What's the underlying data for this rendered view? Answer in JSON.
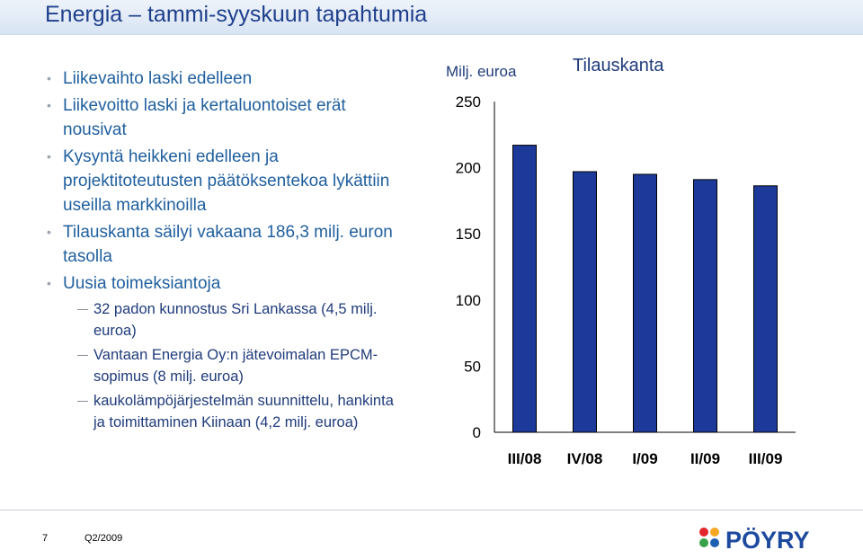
{
  "slide": {
    "title": "Energia – tammi-syyskuun tapahtumia",
    "page_number": "7",
    "footer": "Q2/2009",
    "logo_text": "PÖYRY"
  },
  "bullets": [
    {
      "text": "Liikevaihto laski edelleen"
    },
    {
      "text": "Liikevoitto laski ja kertaluontoiset erät nousivat"
    },
    {
      "text": "Kysyntä heikkeni edelleen ja projektitoteutusten päätöksentekoa lykättiin useilla markkinoilla"
    },
    {
      "text": "Tilauskanta säilyi vakaana 186,3 milj. euron tasolla"
    },
    {
      "text": "Uusia toimeksiantoja",
      "sub": [
        "32 padon kunnostus Sri Lankassa (4,5 milj. euroa)",
        "Vantaan Energia Oy:n jätevoimalan EPCM-sopimus (8 milj. euroa)",
        "kaukolämpöjärjestelmän suunnittelu, hankinta ja toimittaminen Kiinaan (4,2 milj. euroa)"
      ]
    }
  ],
  "chart_data": {
    "type": "bar",
    "title": "Tilauskanta",
    "ylabel": "Milj. euroa",
    "categories": [
      "III/08",
      "IV/08",
      "I/09",
      "II/09",
      "III/09"
    ],
    "values": [
      217,
      197,
      195,
      191,
      186.3
    ],
    "ylim": [
      0,
      250
    ],
    "yticks": [
      "0",
      "50",
      "100",
      "150",
      "200",
      "250"
    ],
    "bar_color": "#1d3a9b",
    "grid": false
  }
}
